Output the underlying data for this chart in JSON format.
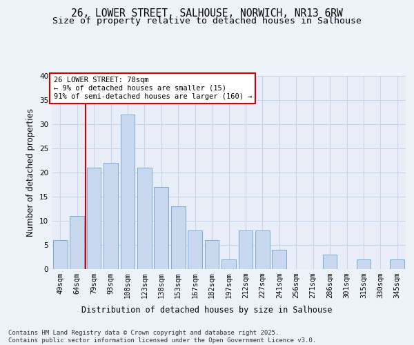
{
  "title": "26, LOWER STREET, SALHOUSE, NORWICH, NR13 6RW",
  "subtitle": "Size of property relative to detached houses in Salhouse",
  "xlabel": "Distribution of detached houses by size in Salhouse",
  "ylabel": "Number of detached properties",
  "categories": [
    "49sqm",
    "64sqm",
    "79sqm",
    "93sqm",
    "108sqm",
    "123sqm",
    "138sqm",
    "153sqm",
    "167sqm",
    "182sqm",
    "197sqm",
    "212sqm",
    "227sqm",
    "241sqm",
    "256sqm",
    "271sqm",
    "286sqm",
    "301sqm",
    "315sqm",
    "330sqm",
    "345sqm"
  ],
  "values": [
    6,
    11,
    21,
    22,
    32,
    21,
    17,
    13,
    8,
    6,
    2,
    8,
    8,
    4,
    0,
    0,
    3,
    0,
    2,
    0,
    2
  ],
  "bar_color": "#c8d8ee",
  "bar_edge_color": "#7baad4",
  "grid_color": "#c8d4e8",
  "background_color": "#e8eef8",
  "fig_background_color": "#edf2f8",
  "vline_x_index": 2,
  "vline_color": "#cc0000",
  "annotation_text": "26 LOWER STREET: 78sqm\n← 9% of detached houses are smaller (15)\n91% of semi-detached houses are larger (160) →",
  "annotation_box_facecolor": "#ffffff",
  "annotation_border_color": "#cc0000",
  "ylim": [
    0,
    40
  ],
  "yticks": [
    0,
    5,
    10,
    15,
    20,
    25,
    30,
    35,
    40
  ],
  "footer": "Contains HM Land Registry data © Crown copyright and database right 2025.\nContains public sector information licensed under the Open Government Licence v3.0.",
  "title_fontsize": 10.5,
  "subtitle_fontsize": 9.5,
  "axis_label_fontsize": 8.5,
  "tick_fontsize": 7.5,
  "annotation_fontsize": 7.5,
  "footer_fontsize": 6.5
}
